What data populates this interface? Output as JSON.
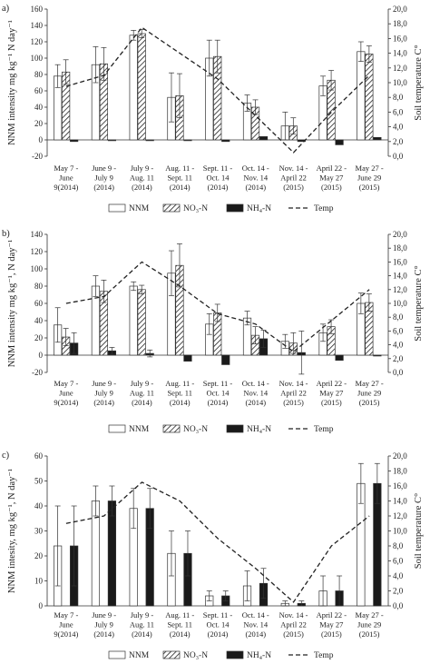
{
  "colors": {
    "bar_stroke": "#333333",
    "nh4_fill": "#1a1a1a",
    "temp_line": "#222222"
  },
  "legend": {
    "nnm": "NNM",
    "no3": "NO₃-N",
    "nh4": "NH₄-N",
    "temp": "Temp"
  },
  "categories": [
    [
      "May 7 -",
      "June",
      "9(2014)"
    ],
    [
      "June 9 -",
      "July 9",
      "(2014)"
    ],
    [
      "July 9 -",
      "Aug. 11",
      "(2014)"
    ],
    [
      "Aug. 11 -",
      "Sept. 11",
      "(2014)"
    ],
    [
      "Sept. 11 -",
      "Oct. 14",
      "(2014)"
    ],
    [
      "Oct. 14 -",
      "Nov. 14",
      "(2014)"
    ],
    [
      "Nov. 14 -",
      "April 22",
      "(2015)"
    ],
    [
      "April 22 -",
      "May 27",
      "(2015)"
    ],
    [
      "May 27 -",
      "June 29",
      "(2015)"
    ]
  ],
  "chart_data": [
    {
      "type": "bar",
      "panel_label": "a)",
      "ylabel": "NNM intensity   mg kg⁻¹ N day⁻¹",
      "y2label": "Soil  temperature  C°",
      "ylim": [
        -20,
        160
      ],
      "ytick_step": 20,
      "y2lim": [
        0,
        20
      ],
      "y2tick_step": 2,
      "series": [
        {
          "name": "NNM",
          "values": [
            78,
            92,
            128,
            52,
            100,
            45,
            17,
            66,
            108
          ],
          "errors": [
            14,
            22,
            6,
            30,
            22,
            10,
            17,
            12,
            12
          ]
        },
        {
          "name": "NO₃-N",
          "values": [
            83,
            93,
            130,
            54,
            102,
            40,
            17,
            73,
            105
          ],
          "errors": [
            15,
            20,
            5,
            27,
            20,
            9,
            10,
            12,
            10
          ]
        },
        {
          "name": "NH₄-N",
          "values": [
            -2,
            -1,
            -1,
            -1,
            -2,
            4,
            -2,
            -6,
            3
          ],
          "errors": [
            0,
            0,
            0,
            0,
            0,
            0,
            0,
            0,
            0
          ]
        }
      ],
      "temp": [
        9.5,
        11.0,
        17.5,
        14.0,
        10.5,
        5.5,
        0.5,
        6.0,
        11.0
      ]
    },
    {
      "type": "bar",
      "panel_label": "b)",
      "ylabel": "NNM intensity  mg kg⁻¹, N day⁻¹",
      "y2label": "Soil  temperature  C°",
      "ylim": [
        -20,
        140
      ],
      "ytick_step": 20,
      "y2lim": [
        0,
        20
      ],
      "y2tick_step": 2,
      "series": [
        {
          "name": "NNM",
          "values": [
            35,
            80,
            80,
            95,
            36,
            43,
            16,
            26,
            60
          ],
          "errors": [
            20,
            12,
            5,
            26,
            12,
            8,
            8,
            10,
            12
          ]
        },
        {
          "name": "NO₃-N",
          "values": [
            21,
            74,
            76,
            104,
            49,
            23,
            14,
            33,
            61
          ],
          "errors": [
            10,
            13,
            5,
            25,
            10,
            10,
            12,
            8,
            10
          ]
        },
        {
          "name": "NH₄-N",
          "values": [
            14,
            5,
            2,
            -7,
            -11,
            19,
            3,
            -6,
            -1
          ],
          "errors": [
            12,
            4,
            4,
            0,
            0,
            10,
            25,
            0,
            0
          ]
        }
      ],
      "temp": [
        10.0,
        11.0,
        16.0,
        12.5,
        8.5,
        7.0,
        3.0,
        7.5,
        12.0
      ]
    },
    {
      "type": "bar",
      "panel_label": "c)",
      "ylabel": "NNM intesity,  mg kg⁻¹, N day⁻¹",
      "y2label": "Soil  temperature  C°",
      "ylim": [
        0,
        60
      ],
      "ytick_step": 10,
      "y2lim": [
        0,
        20
      ],
      "y2tick_step": 2,
      "series": [
        {
          "name": "NNM",
          "values": [
            24,
            42,
            39,
            21,
            4,
            8,
            1,
            6,
            49
          ],
          "errors": [
            16,
            6,
            8,
            9,
            2,
            6,
            1,
            6,
            8
          ]
        },
        {
          "name": "NO₃-N",
          "values": [
            0,
            0,
            0,
            0,
            0,
            0,
            0,
            0,
            0
          ],
          "errors": [
            0,
            0,
            0,
            0,
            0,
            0,
            0,
            0,
            0
          ]
        },
        {
          "name": "NH₄-N",
          "values": [
            24,
            42,
            39,
            21,
            4,
            9,
            1,
            6,
            49
          ],
          "errors": [
            16,
            6,
            8,
            9,
            2,
            6,
            1,
            6,
            8
          ]
        }
      ],
      "temp": [
        11.0,
        12.0,
        16.5,
        14.0,
        9.0,
        5.0,
        0.5,
        8.0,
        12.0
      ]
    }
  ]
}
